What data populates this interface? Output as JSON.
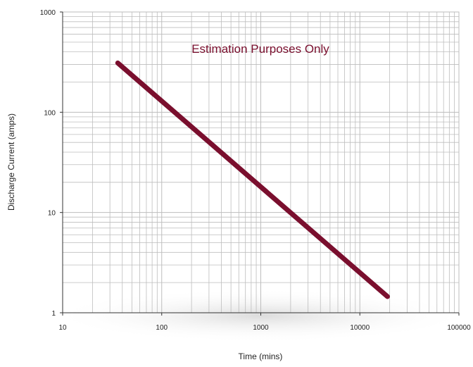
{
  "chart_data": {
    "type": "line",
    "title": "",
    "annotation": "Estimation Purposes Only",
    "xlabel": "Time (mins)",
    "ylabel": "Discharge Current (amps)",
    "x_scale": "log",
    "y_scale": "log",
    "xlim": [
      10,
      100000
    ],
    "ylim": [
      1,
      1000
    ],
    "x_ticks": [
      "10",
      "100",
      "1000",
      "10000",
      "100000"
    ],
    "y_ticks": [
      "1",
      "10",
      "100",
      "1000"
    ],
    "grid": true,
    "legend": "none",
    "series": [
      {
        "x": [
          36,
          19000
        ],
        "y": [
          310,
          1.45
        ],
        "color": "#7a0f2e"
      }
    ],
    "colors": {
      "line": "#7a0f2e",
      "annotation": "#7a0f2e",
      "grid": "#bdbdbd",
      "axis": "#333333"
    }
  }
}
